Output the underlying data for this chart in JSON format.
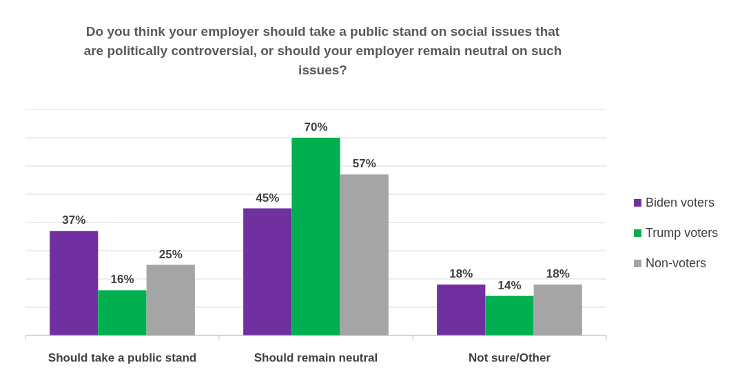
{
  "chart_data": {
    "type": "bar",
    "title": "Do you think your employer should take a public stand on social issues that are politically controversial, or should your employer remain neutral on such issues?",
    "categories": [
      "Should take a public stand",
      "Should remain neutral",
      "Not sure/Other"
    ],
    "series": [
      {
        "name": "Biden voters",
        "color": "#7030a0",
        "values": [
          37,
          45,
          18
        ],
        "value_labels": [
          "37%",
          "45%",
          "18%"
        ]
      },
      {
        "name": "Trump voters",
        "color": "#00b050",
        "values": [
          16,
          70,
          14
        ],
        "value_labels": [
          "16%",
          "70%",
          "14%"
        ]
      },
      {
        "name": "Non-voters",
        "color": "#a5a5a5",
        "values": [
          25,
          57,
          18
        ],
        "value_labels": [
          "25%",
          "57%",
          "18%"
        ]
      }
    ],
    "grid": "y",
    "tick_labels": "x",
    "legend": "right"
  }
}
